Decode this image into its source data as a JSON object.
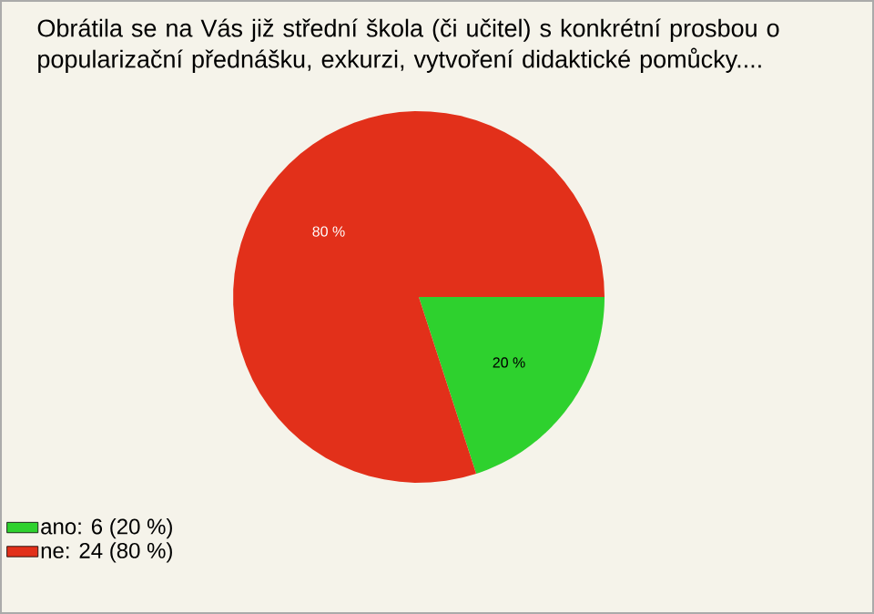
{
  "chart_data": {
    "type": "pie",
    "title": "Obrátila se na Vás již střední škola (či učitel) s konkrétní prosbou o popularizační přednášku, exkurzi, vytvoření didaktické pomůcky....",
    "categories": [
      "ano: 6 (20 %)",
      "ne: 24 (80 %)"
    ],
    "values": [
      20,
      80
    ],
    "colors": [
      "#2ed12e",
      "#e2301a"
    ],
    "value_labels": [
      "20 %",
      "80 %"
    ],
    "legend": "bottom left"
  }
}
